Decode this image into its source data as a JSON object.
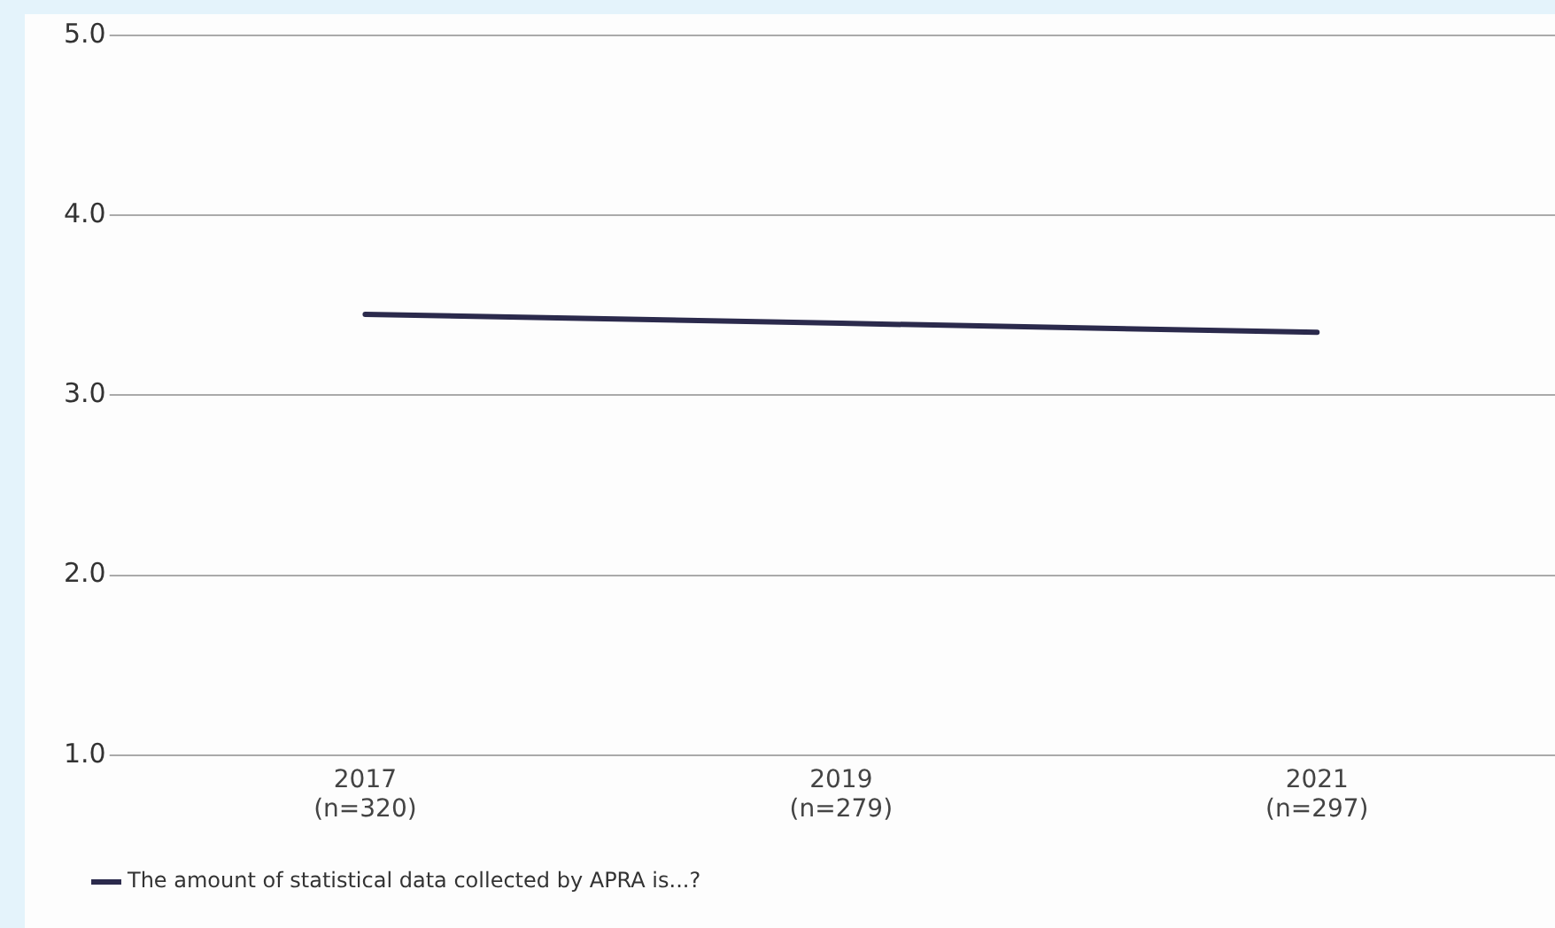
{
  "chart_data": {
    "type": "line",
    "categories": [
      "2017\n(n=320)",
      "2019\n(n=279)",
      "2021\n(n=297)"
    ],
    "series": [
      {
        "name": "The amount of statistical data collected by APRA is...?",
        "color": "#2b2a4c",
        "values": [
          3.45,
          3.4,
          3.35
        ]
      }
    ],
    "ylim": [
      1,
      5
    ],
    "yticks": [
      {
        "value": 1,
        "label": "1.0"
      },
      {
        "value": 2,
        "label": "2.0"
      },
      {
        "value": 3,
        "label": "3.0"
      },
      {
        "value": 4,
        "label": "4.0"
      },
      {
        "value": 5,
        "label": "5.0"
      }
    ],
    "grid": "y",
    "legend": "bottom left",
    "marker": "none",
    "line_style": "solid"
  }
}
